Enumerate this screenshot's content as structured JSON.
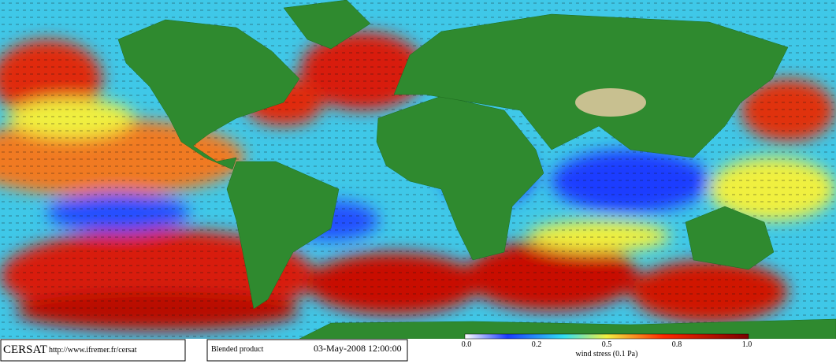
{
  "footer": {
    "logo": "CERSAT",
    "url": "http://www.ifremer.fr/cersat",
    "product": "Blended product",
    "datetime": "03-May-2008 12:00:00"
  },
  "colorbar": {
    "ticks": [
      "0.0",
      "0.2",
      "0.5",
      "0.8",
      "1.0"
    ],
    "label": "wind stress (0.1 Pa)"
  }
}
